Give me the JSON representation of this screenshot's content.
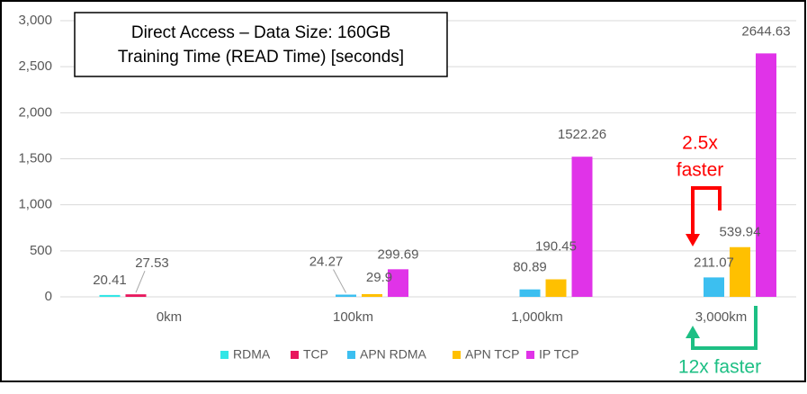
{
  "chart_data": {
    "type": "bar",
    "title": "Direct Access – Data Size: 160GB",
    "subtitle": "Training Time (READ Time) [seconds]",
    "categories": [
      "0km",
      "100km",
      "1,000km",
      "3,000km"
    ],
    "series": [
      {
        "name": "RDMA",
        "color": "#33e6e6",
        "values": [
          20.41,
          null,
          null,
          null
        ]
      },
      {
        "name": "TCP",
        "color": "#e8175d",
        "values": [
          27.53,
          null,
          null,
          null
        ]
      },
      {
        "name": "APN RDMA",
        "color": "#3cbff0",
        "values": [
          null,
          24.27,
          80.89,
          211.07
        ]
      },
      {
        "name": "APN TCP",
        "color": "#ffc000",
        "values": [
          null,
          29.9,
          190.45,
          539.94
        ]
      },
      {
        "name": "IP TCP",
        "color": "#e033e8",
        "values": [
          null,
          299.69,
          1522.26,
          2644.63
        ]
      }
    ],
    "ylim": [
      0,
      3000
    ],
    "yticks": [
      0,
      500,
      {
        "value": 1000,
        "label": "1,000"
      },
      {
        "value": 1500,
        "label": "1,500"
      },
      {
        "value": 2000,
        "label": "2,000"
      },
      {
        "value": 2500,
        "label": "2,500"
      },
      {
        "value": 3000,
        "label": "3,000"
      }
    ],
    "grid": true,
    "legend": "bottom",
    "annotations": [
      {
        "lines": [
          "2.5x",
          "faster"
        ],
        "color": "#ff0000"
      },
      {
        "lines": [
          "12x faster"
        ],
        "color": "#1dbf84"
      }
    ]
  }
}
